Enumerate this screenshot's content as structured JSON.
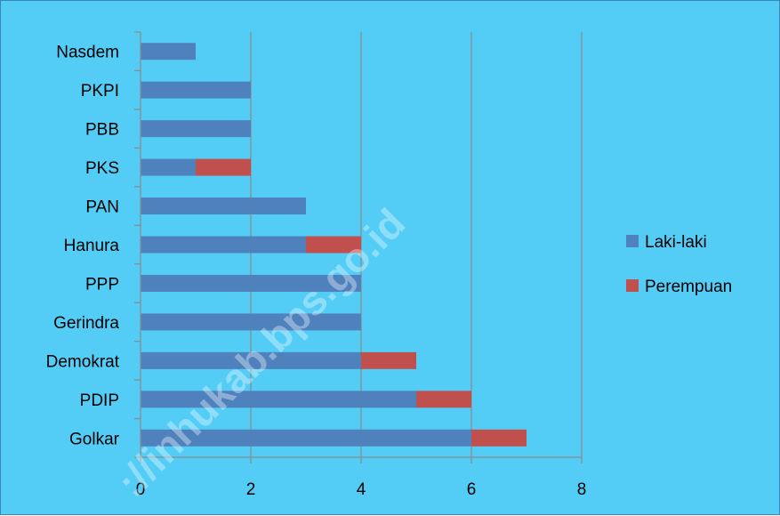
{
  "chart_data": {
    "type": "bar",
    "orientation": "horizontal",
    "stacked": true,
    "categories": [
      "Golkar",
      "PDIP",
      "Demokrat",
      "Gerindra",
      "PPP",
      "Hanura",
      "PAN",
      "PKS",
      "PBB",
      "PKPI",
      "Nasdem"
    ],
    "series": [
      {
        "name": "Laki-laki",
        "color": "#4f81bd",
        "values": [
          6,
          5,
          4,
          4,
          4,
          3,
          3,
          1,
          2,
          2,
          1
        ]
      },
      {
        "name": "Perempuan",
        "color": "#c0504d",
        "values": [
          1,
          1,
          1,
          0,
          0,
          1,
          0,
          1,
          0,
          0,
          0
        ]
      }
    ],
    "xlim": [
      0,
      8
    ],
    "xticks": [
      "0",
      "2",
      "4",
      "6",
      "8"
    ],
    "grid": true,
    "legend_position": "right",
    "background": "#54cdf6",
    "watermark": "://inhukab.bps.go.id"
  }
}
